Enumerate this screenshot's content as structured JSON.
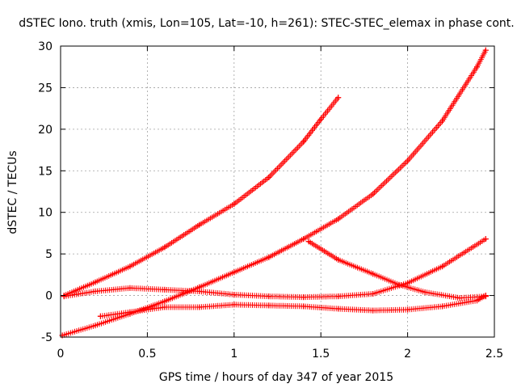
{
  "chart_data": {
    "type": "scatter",
    "title": "dSTEC Iono. truth (xmis, Lon=105, Lat=-10, h=261): STEC-STEC_elemax in phase cont.",
    "xlabel": "GPS time / hours of day 347 of year 2015",
    "ylabel": "dSTEC  / TECUs",
    "xlim": [
      0,
      2.5
    ],
    "ylim": [
      -5,
      30
    ],
    "x_ticks": [
      0,
      0.5,
      1,
      1.5,
      2,
      2.5
    ],
    "x_tick_labels": [
      "0",
      "0.5",
      "1",
      "1.5",
      "2",
      "2.5"
    ],
    "y_ticks": [
      -5,
      0,
      5,
      10,
      15,
      20,
      25,
      30
    ],
    "y_tick_labels": [
      "-5",
      "0",
      "5",
      "10",
      "15",
      "20",
      "25",
      "30"
    ],
    "grid": true,
    "marker": "+",
    "marker_color": "#ff0000",
    "series": [
      {
        "x": [
          0.02,
          0.2,
          0.4,
          0.6,
          0.8,
          1.0,
          1.2,
          1.4,
          1.5,
          1.6
        ],
        "y": [
          0.0,
          1.6,
          3.5,
          5.8,
          8.5,
          11.0,
          14.2,
          18.5,
          21.2,
          23.8
        ]
      },
      {
        "x": [
          0.01,
          0.2,
          0.4,
          0.6,
          0.8,
          1.0,
          1.2,
          1.4,
          1.6,
          1.8,
          2.0,
          2.2,
          2.4,
          2.45
        ],
        "y": [
          -4.8,
          -3.6,
          -2.2,
          -0.7,
          1.0,
          2.8,
          4.6,
          6.8,
          9.2,
          12.2,
          16.2,
          21.0,
          27.5,
          29.5
        ]
      },
      {
        "x": [
          0.02,
          0.2,
          0.4,
          0.6,
          0.8,
          1.0,
          1.2,
          1.4,
          1.6,
          1.8,
          2.0,
          2.2,
          2.45
        ],
        "y": [
          -0.1,
          0.5,
          0.9,
          0.7,
          0.5,
          0.1,
          -0.1,
          -0.2,
          -0.1,
          0.2,
          1.5,
          3.5,
          6.8
        ]
      },
      {
        "x": [
          0.23,
          0.4,
          0.6,
          0.8,
          1.0,
          1.2,
          1.4,
          1.6,
          1.8,
          2.0,
          2.2,
          2.4,
          2.45
        ],
        "y": [
          -2.5,
          -2.0,
          -1.4,
          -1.4,
          -1.1,
          -1.2,
          -1.3,
          -1.6,
          -1.8,
          -1.7,
          -1.3,
          -0.6,
          0.0
        ]
      },
      {
        "x": [
          1.43,
          1.6,
          1.8,
          1.95,
          2.1,
          2.3,
          2.45
        ],
        "y": [
          6.5,
          4.3,
          2.6,
          1.3,
          0.4,
          -0.3,
          -0.1
        ]
      }
    ]
  }
}
